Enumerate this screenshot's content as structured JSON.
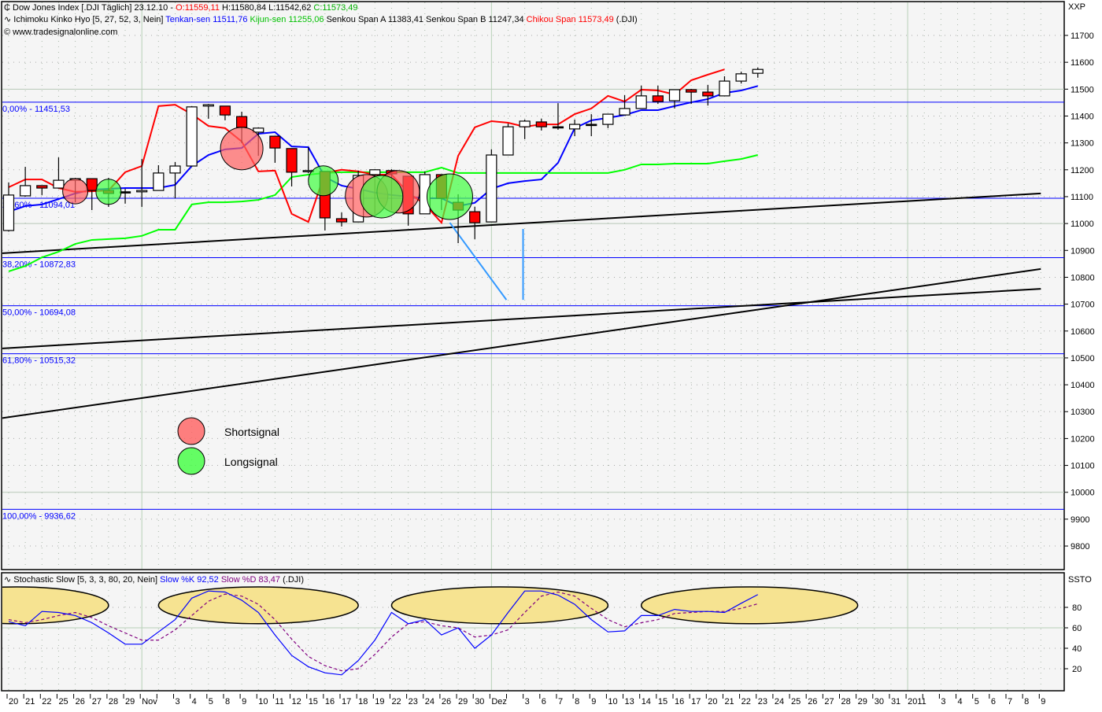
{
  "header": {
    "line1": {
      "symbol": "Dow Jones Index [.DJI  Täglich] 23.12.10 - ",
      "open": "O:11559,11",
      "hl": " H:11580,84 L:11542,62 ",
      "close": "C:11573,49"
    },
    "line2": {
      "name": "Ichimoku Kinko Hyo [5, 27, 52, 3, Nein] ",
      "tenkan": "Tenkan-sen 11511,76",
      "kijun": " Kijun-sen 11255,06",
      "senkou": " Senkou Span A 11383,41 Senkou Span B 11247,34 ",
      "chikou": "Chikou Span 11573,49",
      "suffix": " (.DJI)"
    },
    "copyright": "© www.tradesignalonline.com",
    "price_axis_label": "XXP",
    "stoch_title": {
      "name": "Stochastic Slow [5, 3, 3, 80, 20, Nein] ",
      "k": "Slow %K 92,52",
      "d": " Slow %D 83,47",
      "suffix": " (.DJI)"
    },
    "stoch_axis_label": "SSTO"
  },
  "colors": {
    "up": "#ffffff",
    "down": "#ff0000",
    "tenkan": "#0000ff",
    "kijun": "#00ff00",
    "chikou": "#ff0000",
    "fib": "#0000ff",
    "projection": "#3399ff",
    "stoch_k": "#0000ff",
    "stoch_d": "#800080",
    "highlight": "#f6e391",
    "short_signal": "#ff6060",
    "long_signal": "#40ff40"
  },
  "x_axis_labels": [
    "20",
    "21",
    "22",
    "25",
    "26",
    "27",
    "28",
    "29",
    "Nov",
    "",
    "3",
    "4",
    "5",
    "8",
    "9",
    "10",
    "11",
    "12",
    "15",
    "16",
    "17",
    "18",
    "19",
    "22",
    "23",
    "24",
    "26",
    "29",
    "30",
    "Dez",
    "",
    "3",
    "6",
    "7",
    "8",
    "9",
    "10",
    "13",
    "14",
    "15",
    "16",
    "17",
    "20",
    "21",
    "22",
    "23",
    "24",
    "25",
    "26",
    "27",
    "28",
    "29",
    "30",
    "31",
    "2011",
    "",
    "3",
    "4",
    "5",
    "6",
    "7",
    "8",
    "9"
  ],
  "chart_data": [
    {
      "type": "candlestick",
      "ylim": [
        9750,
        11780
      ],
      "yticks": [
        11700,
        11600,
        11500,
        11400,
        11300,
        11200,
        11100,
        11000,
        10900,
        10800,
        10700,
        10600,
        10500,
        10400,
        10300,
        10200,
        10100,
        10000,
        9900,
        9800
      ],
      "grid": true,
      "candles": {
        "open": [
          10974,
          11103,
          11141,
          11132,
          11161,
          11167,
          11123,
          11118,
          11118,
          11123,
          11188,
          11214,
          11437,
          11437,
          11398,
          11340,
          11325,
          11279,
          11194,
          11194,
          11018,
          11006,
          11182,
          11197,
          11176,
          11036,
          11182,
          11079,
          11044,
          11006,
          11255,
          11360,
          11378,
          11360,
          11352,
          11369,
          11369,
          11404,
          11428,
          11475,
          11457,
          11498,
          11489,
          11475,
          11530,
          11559.11
        ],
        "high": [
          11153,
          11211,
          11141,
          11246,
          11170,
          11167,
          11170,
          11129,
          11240,
          11217,
          11229,
          11437,
          11445,
          11437,
          11416,
          11358,
          11325,
          11279,
          11284,
          11194,
          11041,
          11197,
          11202,
          11202,
          11176,
          11194,
          11182,
          11109,
          11062,
          11276,
          11372,
          11387,
          11390,
          11448,
          11387,
          11407,
          11407,
          11478,
          11513,
          11513,
          11498,
          11501,
          11516,
          11548,
          11565,
          11580.84
        ],
        "low": [
          10970,
          11100,
          11106,
          11130,
          11079,
          11050,
          11062,
          11074,
          11062,
          11123,
          11094,
          11214,
          11390,
          11384,
          11299,
          11252,
          11226,
          11138,
          11188,
          10974,
          10989,
          11006,
          11036,
          11050,
          10992,
          11036,
          11050,
          10927,
          10942,
          11006,
          11255,
          11314,
          11346,
          11349,
          11325,
          11325,
          11355,
          11404,
          11428,
          11445,
          11428,
          11445,
          11439,
          11475,
          11521,
          11542.62
        ],
        "close": [
          11106,
          11141,
          11132,
          11161,
          11167,
          11123,
          11112,
          11118,
          11123,
          11188,
          11214,
          11434,
          11442,
          11404,
          11358,
          11355,
          11281,
          11191,
          11197,
          11021,
          11006,
          11179,
          11200,
          11185,
          11036,
          11182,
          11094,
          11050,
          11003,
          11255,
          11360,
          11381,
          11360,
          11360,
          11369,
          11369,
          11407,
          11428,
          11475,
          11454,
          11498,
          11489,
          11475,
          11530,
          11557,
          11573.49
        ]
      },
      "series": [
        {
          "name": "Tenkan-sen",
          "values": [
            11044,
            11065,
            11071,
            11091,
            11112,
            11126,
            11129,
            11132,
            11132,
            11132,
            11144,
            11214,
            11255,
            11276,
            11281,
            11334,
            11340,
            11287,
            11284,
            11173,
            11141,
            11129,
            11115,
            11106,
            11100,
            11094,
            11094,
            11065,
            11077,
            11129,
            11150,
            11158,
            11164,
            11226,
            11355,
            11384,
            11393,
            11404,
            11422,
            11422,
            11437,
            11451,
            11463,
            11486,
            11495,
            11511.76
          ]
        },
        {
          "name": "Kijun-sen",
          "values": [
            10822,
            10842,
            10874,
            10895,
            10924,
            10939,
            10942,
            10945,
            10954,
            10977,
            10977,
            11071,
            11079,
            11079,
            11082,
            11088,
            11106,
            11173,
            11182,
            11188,
            11191,
            11191,
            11191,
            11191,
            11191,
            11191,
            11208,
            11188,
            11188,
            11188,
            11188,
            11188,
            11188,
            11188,
            11188,
            11188,
            11188,
            11200,
            11220,
            11220,
            11223,
            11223,
            11223,
            11232,
            11240,
            11255.06
          ]
        },
        {
          "name": "Chikou Span",
          "values": [
            11135,
            11164,
            11164,
            11132,
            11118,
            11120,
            11123,
            11191,
            11214,
            11437,
            11442,
            11407,
            11363,
            11355,
            11305,
            11194,
            11197,
            11036,
            11006,
            11188,
            11200,
            11194,
            11182,
            11182,
            11115,
            11071,
            11003,
            11252,
            11358,
            11381,
            11375,
            11360,
            11369,
            11369,
            11407,
            11428,
            11475,
            11454,
            11498,
            11495,
            11480,
            11533,
            11554,
            11573.49
          ]
        }
      ],
      "fib_levels": [
        {
          "label": "0,00% - 11451,53",
          "value": 11451.53
        },
        {
          "label": "23,60% - 11094,01",
          "value": 11094.01
        },
        {
          "label": "38,20% - 10872,83",
          "value": 10872.83
        },
        {
          "label": "50,00% - 10694,08",
          "value": 10694.08
        },
        {
          "label": "61,80% - 10515,32",
          "value": 10515.32
        },
        {
          "label": "100,00% - 9936,62",
          "value": 9936.62
        }
      ],
      "trendlines": [
        {
          "from": [
            -0.5,
            10889
          ],
          "to": [
            62,
            11112
          ]
        },
        {
          "from": [
            -0.5,
            10535
          ],
          "to": [
            62,
            10757
          ]
        },
        {
          "from": [
            -0.5,
            10275
          ],
          "to": [
            62,
            10831
          ]
        }
      ],
      "projection_lines": [
        {
          "from": [
            26.5,
            11003
          ],
          "to": [
            29.9,
            10716
          ]
        },
        {
          "from": [
            30.9,
            10980
          ],
          "to": [
            30.9,
            10716
          ]
        }
      ],
      "signals": [
        {
          "type": "short",
          "x": 4,
          "price": 11120
        },
        {
          "type": "short",
          "x": 14,
          "price": 11279
        },
        {
          "type": "short",
          "x": 21.5,
          "price": 11103
        },
        {
          "type": "short",
          "x": 23.4,
          "price": 11118
        },
        {
          "type": "long",
          "x": 6,
          "price": 11118
        },
        {
          "type": "long",
          "x": 18.9,
          "price": 11159
        },
        {
          "type": "long",
          "x": 22.4,
          "price": 11100
        },
        {
          "type": "long",
          "x": 26.5,
          "price": 11100
        }
      ],
      "legend": [
        {
          "type": "short",
          "label": "Shortsignal"
        },
        {
          "type": "long",
          "label": "Longsignal"
        }
      ]
    },
    {
      "type": "line",
      "ylim": [
        0,
        100
      ],
      "yticks": [
        80,
        60,
        40,
        20
      ],
      "series": [
        {
          "name": "Slow %K",
          "values": [
            66,
            62,
            76,
            75,
            72,
            65,
            55,
            44,
            44,
            56,
            68,
            89,
            96,
            95,
            87,
            75,
            53,
            33,
            22,
            16,
            14,
            28,
            48,
            75,
            64,
            68,
            53,
            60,
            40,
            53,
            75,
            96,
            96,
            92,
            83,
            68,
            56,
            57,
            72,
            72,
            78,
            76,
            76,
            75,
            84,
            92.52
          ]
        },
        {
          "name": "Slow %D",
          "values": [
            68,
            65,
            68,
            72,
            75,
            70,
            62,
            55,
            48,
            48,
            58,
            72,
            86,
            93,
            91,
            83,
            68,
            49,
            32,
            23,
            18,
            20,
            34,
            51,
            64,
            66,
            62,
            60,
            51,
            53,
            58,
            75,
            91,
            95,
            91,
            79,
            68,
            61,
            65,
            68,
            74,
            75,
            76,
            76,
            79,
            83.47
          ]
        }
      ],
      "highlight_zones": [
        {
          "from": -5,
          "to": 6,
          "low": 64,
          "high": 100
        },
        {
          "from": 9,
          "to": 21,
          "low": 64,
          "high": 100
        },
        {
          "from": 23,
          "to": 36,
          "low": 64,
          "high": 100
        },
        {
          "from": 38,
          "to": 51,
          "low": 64,
          "high": 100
        }
      ]
    }
  ]
}
